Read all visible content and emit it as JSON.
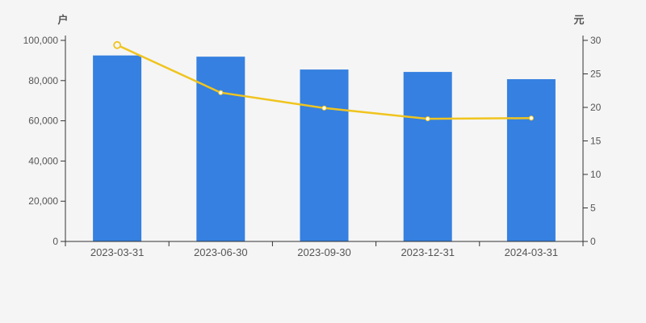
{
  "colors": {
    "background": "#f5f5f5",
    "bar": "#3580e0",
    "line": "#f0c41e",
    "axis_line": "#333333",
    "text": "#555555",
    "marker_fill": "#ffffff"
  },
  "chart_data": {
    "type": "bar",
    "categories": [
      "2023-03-31",
      "2023-06-30",
      "2023-09-30",
      "2023-12-31",
      "2024-03-31"
    ],
    "series": [
      {
        "name": "户",
        "type": "bar",
        "axis": "left",
        "values": [
          92500,
          91900,
          85500,
          84300,
          80700
        ]
      },
      {
        "name": "元",
        "type": "line",
        "axis": "right",
        "values": [
          29.3,
          22.2,
          19.9,
          18.3,
          18.4
        ]
      }
    ],
    "title": "",
    "xlabel": "",
    "ylabel_left": "户",
    "ylabel_right": "元",
    "left_axis": {
      "title": "户",
      "min": 0,
      "max": 100000,
      "tick_step": 20000,
      "tick_labels": [
        "0",
        "20,000",
        "40,000",
        "60,000",
        "80,000",
        "100,000"
      ]
    },
    "right_axis": {
      "title": "元",
      "min": 0,
      "max": 30,
      "tick_step": 5,
      "tick_labels": [
        "0",
        "5",
        "10",
        "15",
        "20",
        "25",
        "30"
      ]
    },
    "grid": false,
    "legend": "none",
    "marker_style": {
      "first_point": "hollow-ring",
      "other_points": "white-dot"
    }
  }
}
